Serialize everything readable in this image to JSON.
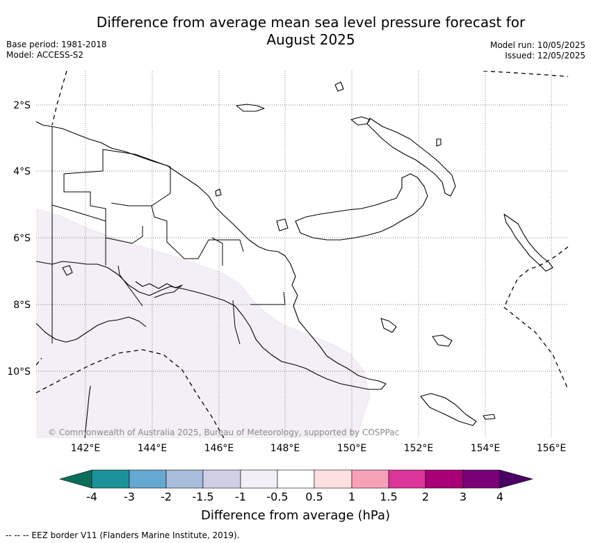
{
  "header": {
    "title_line1": "Difference from average mean sea level pressure forecast for",
    "title_line2": "August 2025",
    "base_period": "Base period: 1981-2018",
    "model": "Model: ACCESS-S2",
    "model_run": "Model run: 10/05/2025",
    "issued": "Issued: 12/05/2025"
  },
  "map": {
    "lat_labels": [
      "2°S",
      "4°S",
      "6°S",
      "8°S",
      "10°S"
    ],
    "lon_labels": [
      "142°E",
      "144°E",
      "146°E",
      "148°E",
      "150°E",
      "152°E",
      "154°E",
      "156°E"
    ],
    "copyright": "© Commonwealth of Australia 2025, Bureau of Meteorology, supported by COSPPac",
    "anomaly_fill_color": "#f4eef6",
    "land_outline_color": "#000000",
    "grid_style": "dotted"
  },
  "colorbar": {
    "title": "Difference from average (hPa)",
    "labels": [
      "-4",
      "-3",
      "-2",
      "-1.5",
      "-1",
      "-0.5",
      "0.5",
      "1",
      "1.5",
      "2",
      "3",
      "4"
    ],
    "colors": [
      "#0b6e5b",
      "#1b9299",
      "#65a9d3",
      "#a8bcdb",
      "#cfd0e6",
      "#f4eef6",
      "#ffffff",
      "#ffe0e0",
      "#f7a1b9",
      "#dc3599",
      "#aa0077",
      "#7a0078",
      "#4c0066"
    ]
  },
  "footnote": "--  --  -- EEZ border V11 (Flanders Marine Institute, 2019)."
}
